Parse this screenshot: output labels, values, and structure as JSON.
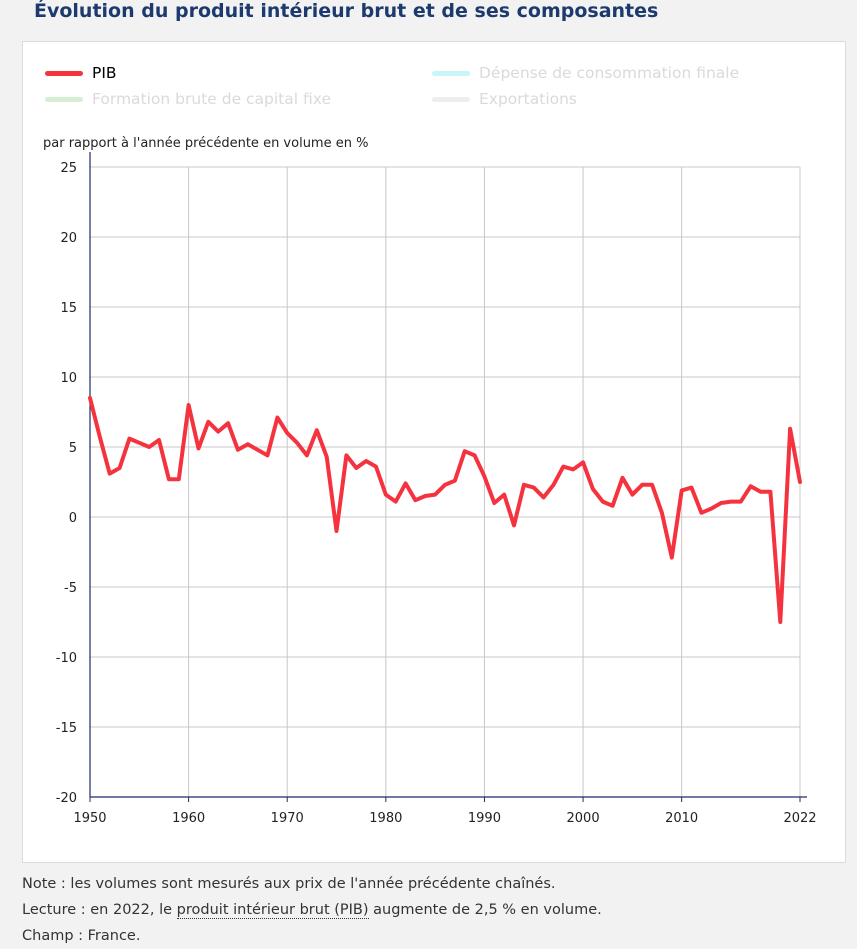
{
  "title": "Évolution du produit intérieur brut et de ses composantes",
  "legend": [
    {
      "label": "PIB",
      "color": "#f5333f",
      "active": true
    },
    {
      "label": "Dépense de consommation finale",
      "color": "#c8f5f5",
      "active": false
    },
    {
      "label": "Formation brute de capital fixe",
      "color": "#d4efd4",
      "active": false
    },
    {
      "label": "Exportations",
      "color": "#eeeeee",
      "active": false
    }
  ],
  "notes": {
    "note": "Note : les volumes sont mesurés aux prix de l'année précédente chaînés.",
    "lecture_prefix": "Lecture : en 2022, le",
    "lecture_link": "produit intérieur brut (PIB)",
    "lecture_suffix": "augmente de 2,5 % en volume.",
    "champ": "Champ : France."
  },
  "chart_data": {
    "type": "line",
    "ylabel": "par rapport à l'année précédente en volume en %",
    "ylim": [
      -20,
      25
    ],
    "yticks": [
      25,
      20,
      15,
      10,
      5,
      0,
      -5,
      -10,
      -15,
      -20
    ],
    "xlim": [
      1950,
      2022
    ],
    "xticks": [
      1950,
      1960,
      1970,
      1980,
      1990,
      2000,
      2010,
      2022
    ],
    "grid": true,
    "series": [
      {
        "name": "PIB",
        "color": "#f5333f",
        "x": [
          1950,
          1951,
          1952,
          1953,
          1954,
          1955,
          1956,
          1957,
          1958,
          1959,
          1960,
          1961,
          1962,
          1963,
          1964,
          1965,
          1966,
          1967,
          1968,
          1969,
          1970,
          1971,
          1972,
          1973,
          1974,
          1975,
          1976,
          1977,
          1978,
          1979,
          1980,
          1981,
          1982,
          1983,
          1984,
          1985,
          1986,
          1987,
          1988,
          1989,
          1990,
          1991,
          1992,
          1993,
          1994,
          1995,
          1996,
          1997,
          1998,
          1999,
          2000,
          2001,
          2002,
          2003,
          2004,
          2005,
          2006,
          2007,
          2008,
          2009,
          2010,
          2011,
          2012,
          2013,
          2014,
          2015,
          2016,
          2017,
          2018,
          2019,
          2020,
          2021,
          2022
        ],
        "values": [
          8.5,
          5.7,
          3.1,
          3.5,
          5.6,
          5.3,
          5.0,
          5.5,
          2.7,
          2.7,
          8.0,
          4.9,
          6.8,
          6.1,
          6.7,
          4.8,
          5.2,
          4.8,
          4.4,
          7.1,
          6.0,
          5.3,
          4.4,
          6.2,
          4.3,
          -1.0,
          4.4,
          3.5,
          4.0,
          3.6,
          1.6,
          1.1,
          2.4,
          1.2,
          1.5,
          1.6,
          2.3,
          2.6,
          4.7,
          4.4,
          2.9,
          1.0,
          1.6,
          -0.6,
          2.3,
          2.1,
          1.4,
          2.3,
          3.6,
          3.4,
          3.9,
          2.0,
          1.1,
          0.8,
          2.8,
          1.6,
          2.3,
          2.3,
          0.3,
          -2.9,
          1.9,
          2.1,
          0.3,
          0.6,
          1.0,
          1.1,
          1.1,
          2.2,
          1.8,
          1.8,
          -7.5,
          6.3,
          2.5
        ]
      }
    ]
  }
}
